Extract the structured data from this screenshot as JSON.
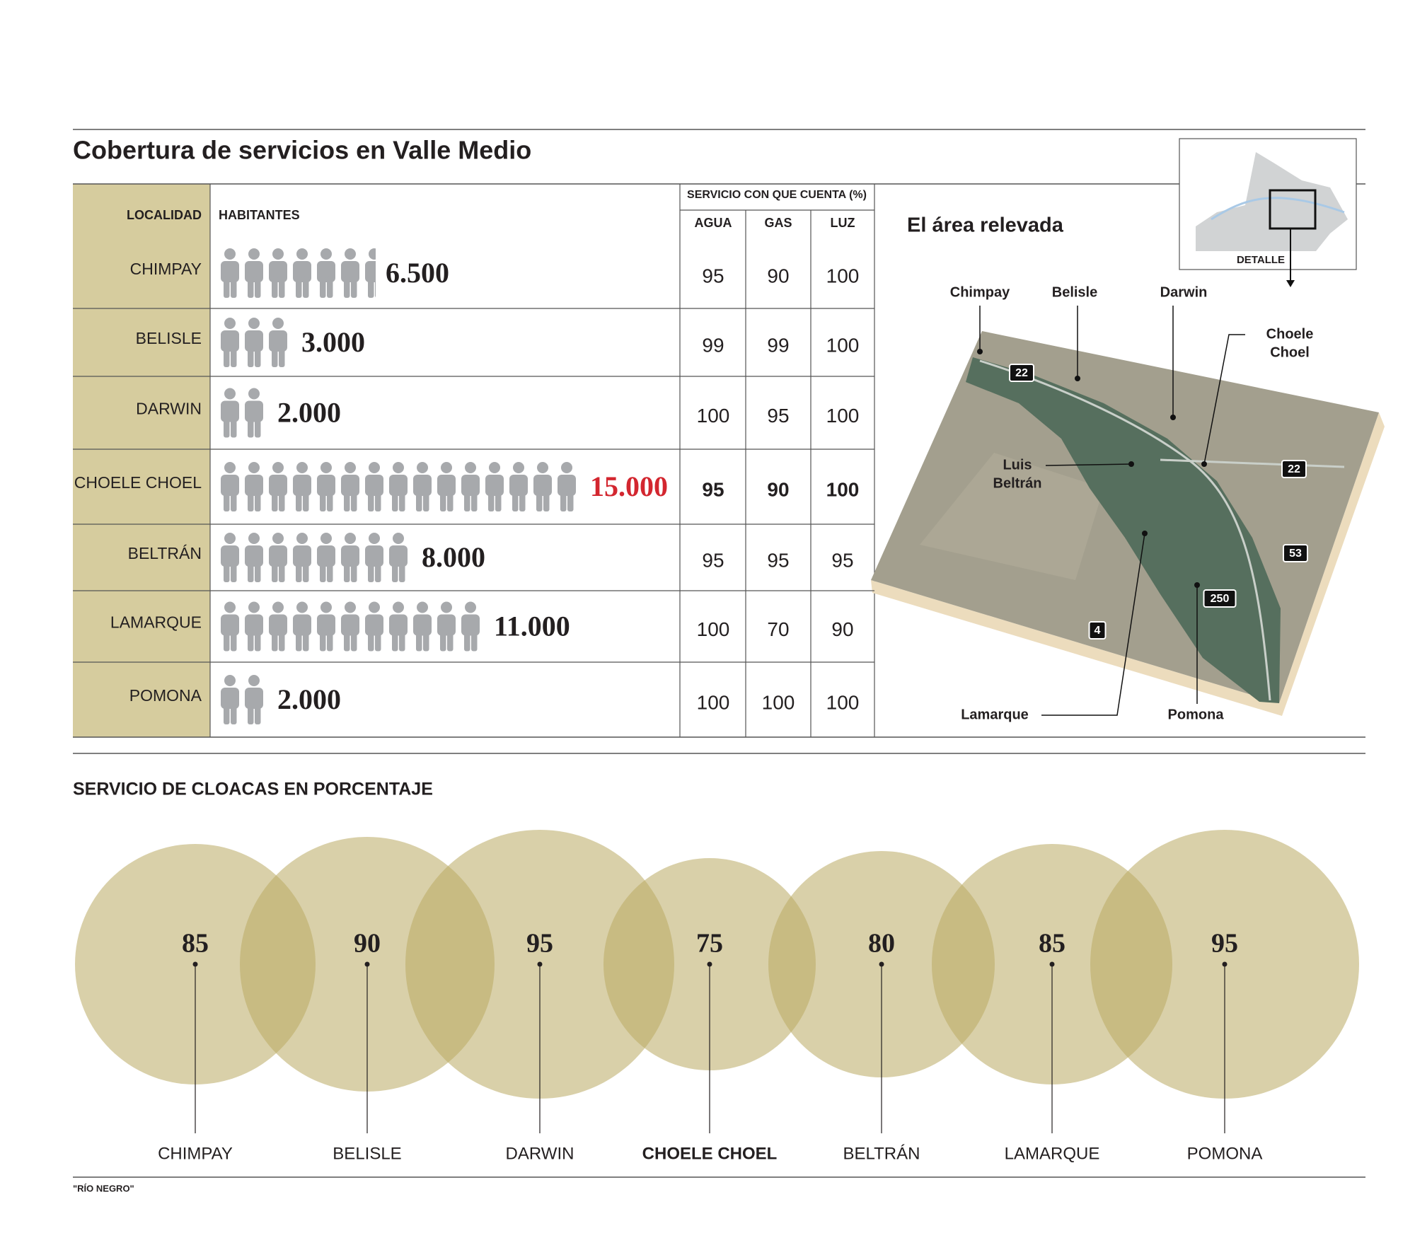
{
  "header": {
    "title": "Cobertura de servicios en Valle Medio"
  },
  "table": {
    "headers": {
      "localidad": "LOCALIDAD",
      "habitantes": "HABITANTES",
      "servicio": "SERVICIO CON QUE CUENTA (%)",
      "agua": "AGUA",
      "gas": "GAS",
      "luz": "LUZ"
    },
    "rows": [
      [
        "CHIMPAY",
        95,
        90,
        100
      ],
      [
        "BELISLE",
        99,
        99,
        100
      ],
      [
        "DARWIN",
        100,
        95,
        100
      ],
      [
        "CHOELE CHOEL",
        95,
        90,
        100
      ],
      [
        "BELTRÁN",
        95,
        95,
        95
      ],
      [
        "LAMARQUE",
        100,
        70,
        90
      ],
      [
        "POMONA",
        100,
        100,
        100
      ]
    ]
  },
  "chart_data": [
    {
      "type": "pictogram",
      "values": [
        6500,
        3000,
        2000,
        15000,
        8000,
        11000,
        2000
      ],
      "value_labels": [
        "6.500",
        "3.000",
        "2.000",
        "15.000",
        "8.000",
        "11.000",
        "2.000"
      ],
      "color": "#a7a9ac",
      "highlight": 3,
      "highlight_color": "#d3262f"
    },
    {
      "type": "bubble",
      "title": "SERVICIO DE CLOACAS EN PORCENTAJE",
      "categories": [
        "CHIMPAY",
        "BELISLE",
        "DARWIN",
        "CHOELE CHOEL",
        "BELTRÁN",
        "LAMARQUE",
        "POMONA"
      ],
      "values": [
        85,
        90,
        95,
        75,
        80,
        85,
        95
      ],
      "color": "#b9a963",
      "highlight": 3
    }
  ],
  "map": {
    "title": "El área relevada",
    "inset_label": "DETALLE",
    "places": [
      [
        "Chimpay"
      ],
      [
        "Belisle"
      ],
      [
        "Darwin"
      ],
      [
        "Choele",
        "Choel"
      ],
      [
        "Luis",
        "Beltrán"
      ],
      [
        "Lamarque"
      ],
      [
        "Pomona"
      ]
    ],
    "routes": [
      "22",
      "22",
      "53",
      "250",
      "4"
    ]
  },
  "footer": {
    "source": "\"RÍO NEGRO\""
  }
}
